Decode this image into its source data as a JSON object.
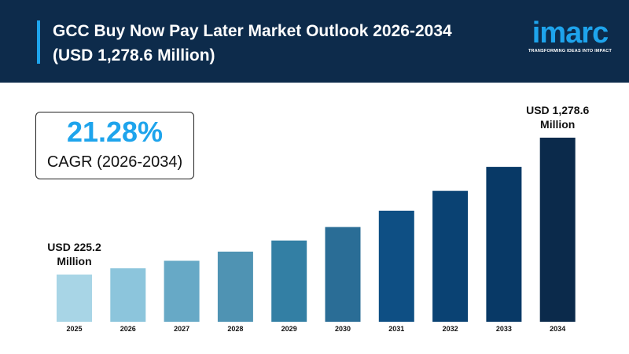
{
  "header": {
    "title_line1": "GCC Buy Now Pay Later Market Outlook 2026-2034",
    "title_line2": "(USD 1,278.6 Million)"
  },
  "logo": {
    "word": "imarc",
    "tagline": "TRANSFORMING IDEAS INTO IMPACT"
  },
  "cagr": {
    "value": "21.28%",
    "label": "CAGR (2026-2034)"
  },
  "chart_data": {
    "type": "bar",
    "categories": [
      "2025",
      "2026",
      "2027",
      "2028",
      "2029",
      "2030",
      "2031",
      "2032",
      "2033",
      "2034"
    ],
    "values": [
      225.2,
      273.1,
      331.2,
      401.7,
      487.2,
      590.9,
      716.6,
      869.1,
      1054.1,
      1278.6
    ],
    "unit": "USD Million",
    "annotations": [
      {
        "category": "2025",
        "line1": "USD 225.2",
        "line2": "Million"
      },
      {
        "category": "2034",
        "line1": "USD 1,278.6",
        "line2": "Million"
      }
    ],
    "colors": [
      "#a8d5e6",
      "#8cc5dc",
      "#67a9c6",
      "#4f93b3",
      "#337fa4",
      "#2a6d96",
      "#0e4f84",
      "#0a4273",
      "#083966",
      "#0b2a4b"
    ],
    "grid": false,
    "legend": "none"
  }
}
